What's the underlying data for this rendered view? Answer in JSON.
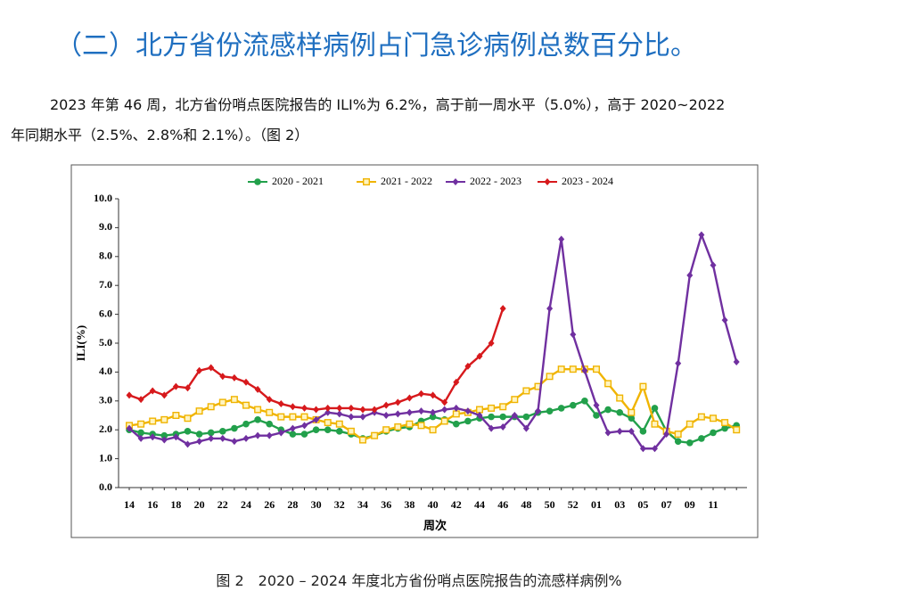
{
  "heading": "（二）北方省份流感样病例占门急诊病例总数百分比。",
  "paragraph": [
    "2023 年第 46 周，北方省份哨点医院报告的 ILI%为 6.2%，高于前一周水平（5.0%），高于 2020~2022",
    "年同期水平（2.5%、2.8%和 2.1%）。（图 2）"
  ],
  "caption": "图 2　2020 – 2024 年度北方省份哨点医院报告的流感样病例%",
  "chart_data": {
    "type": "line",
    "x_label": "周次",
    "y_label": "ILI(%)",
    "categories": [
      "14",
      null,
      "16",
      null,
      "18",
      null,
      "20",
      null,
      "22",
      null,
      "24",
      null,
      "26",
      null,
      "28",
      null,
      "30",
      null,
      "32",
      null,
      "34",
      null,
      "36",
      null,
      "38",
      null,
      "40",
      null,
      "42",
      null,
      "44",
      null,
      "46",
      null,
      "48",
      null,
      "50",
      null,
      "52",
      null,
      "01",
      null,
      "03",
      null,
      "05",
      null,
      "07",
      null,
      "09",
      null,
      "11",
      null,
      null
    ],
    "ylim": [
      0,
      10
    ],
    "yticks": [
      {
        "value": 0,
        "label": "0.0"
      },
      {
        "value": 1,
        "label": "1.0"
      },
      {
        "value": 2,
        "label": "2.0"
      },
      {
        "value": 3,
        "label": "3.0"
      },
      {
        "value": 4,
        "label": "4.0"
      },
      {
        "value": 5,
        "label": "5.0"
      },
      {
        "value": 6,
        "label": "6.0"
      },
      {
        "value": 7,
        "label": "7.0"
      },
      {
        "value": 8,
        "label": "8.0"
      },
      {
        "value": 9,
        "label": "9.0"
      },
      {
        "value": 10,
        "label": "10.0"
      }
    ],
    "legend": "top",
    "series": [
      {
        "name": "2020 - 2021",
        "color": "#22a04b",
        "marker": "circle",
        "values": [
          2.0,
          1.9,
          1.85,
          1.8,
          1.85,
          1.95,
          1.85,
          1.9,
          1.95,
          2.05,
          2.2,
          2.35,
          2.2,
          2.0,
          1.85,
          1.85,
          2.0,
          2.0,
          1.95,
          1.85,
          1.7,
          1.8,
          1.95,
          2.05,
          2.1,
          2.3,
          2.45,
          2.35,
          2.2,
          2.3,
          2.4,
          2.45,
          2.45,
          2.45,
          2.45,
          2.6,
          2.65,
          2.75,
          2.85,
          3.0,
          2.5,
          2.7,
          2.6,
          2.4,
          1.95,
          2.75,
          1.95,
          1.6,
          1.55,
          1.7,
          1.9,
          2.05,
          2.15
        ]
      },
      {
        "name": "2021 - 2022",
        "color": "#f0b400",
        "marker": "square",
        "values": [
          2.15,
          2.2,
          2.3,
          2.35,
          2.5,
          2.4,
          2.65,
          2.8,
          2.95,
          3.05,
          2.85,
          2.7,
          2.6,
          2.45,
          2.45,
          2.45,
          2.35,
          2.25,
          2.2,
          1.95,
          1.65,
          1.8,
          2.0,
          2.1,
          2.2,
          2.15,
          2.0,
          2.3,
          2.55,
          2.6,
          2.7,
          2.75,
          2.8,
          3.05,
          3.35,
          3.5,
          3.85,
          4.1,
          4.1,
          4.1,
          4.1,
          3.6,
          3.1,
          2.6,
          3.5,
          2.2,
          1.95,
          1.85,
          2.2,
          2.45,
          2.4,
          2.25,
          2.0
        ]
      },
      {
        "name": "2022 - 2023",
        "color": "#7030a0",
        "marker": "diamond",
        "values": [
          2.05,
          1.7,
          1.75,
          1.65,
          1.75,
          1.5,
          1.6,
          1.7,
          1.7,
          1.6,
          1.7,
          1.8,
          1.8,
          1.9,
          2.05,
          2.15,
          2.35,
          2.6,
          2.55,
          2.45,
          2.45,
          2.6,
          2.5,
          2.55,
          2.6,
          2.65,
          2.6,
          2.7,
          2.75,
          2.65,
          2.5,
          2.05,
          2.1,
          2.5,
          2.05,
          2.65,
          6.2,
          8.6,
          5.3,
          4.05,
          2.85,
          1.9,
          1.95,
          1.95,
          1.35,
          1.35,
          1.85,
          4.3,
          7.35,
          8.75,
          7.7,
          5.8,
          4.35
        ]
      },
      {
        "name": "2023 - 2024",
        "color": "#d7191c",
        "marker": "diamond",
        "values": [
          3.2,
          3.05,
          3.35,
          3.2,
          3.5,
          3.45,
          4.05,
          4.15,
          3.85,
          3.8,
          3.65,
          3.4,
          3.05,
          2.9,
          2.8,
          2.75,
          2.7,
          2.75,
          2.75,
          2.75,
          2.7,
          2.7,
          2.85,
          2.95,
          3.1,
          3.25,
          3.2,
          2.95,
          3.65,
          4.2,
          4.55,
          5.0,
          6.2,
          null,
          null,
          null,
          null,
          null,
          null,
          null,
          null,
          null,
          null,
          null,
          null,
          null,
          null,
          null,
          null,
          null,
          null,
          null,
          null
        ]
      }
    ]
  }
}
